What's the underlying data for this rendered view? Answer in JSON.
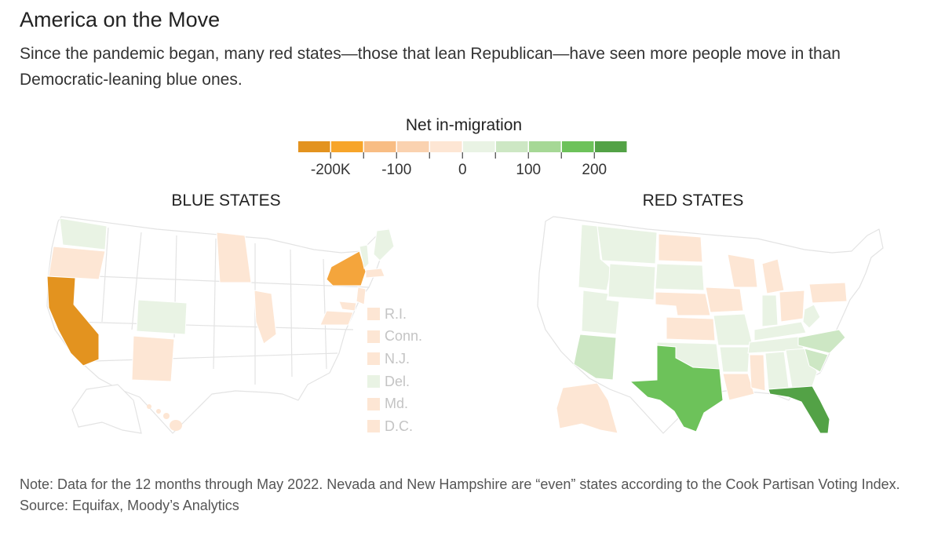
{
  "title": "America on the Move",
  "subtitle": "Since the pandemic began, many red states—those that lean Republican—have seen more people move in than Democratic-leaning blue ones.",
  "legend": {
    "title": "Net in-migration",
    "colors": [
      "#e3931f",
      "#f7a52a",
      "#f8bd84",
      "#fad2b0",
      "#fde6d4",
      "#e9f3e4",
      "#cde7c4",
      "#a6d896",
      "#6dc25a",
      "#53a246"
    ],
    "tick_labels": [
      "-200K",
      "-100",
      "0",
      "100",
      "200"
    ]
  },
  "blue_states": {
    "label": "BLUE STATES",
    "small_states": [
      {
        "name": "R.I.",
        "color": "#fde6d4"
      },
      {
        "name": "Conn.",
        "color": "#fde6d4"
      },
      {
        "name": "N.J.",
        "color": "#fde6d4"
      },
      {
        "name": "Del.",
        "color": "#e9f3e4"
      },
      {
        "name": "Md.",
        "color": "#fde6d4"
      },
      {
        "name": "D.C.",
        "color": "#fde6d4"
      }
    ]
  },
  "red_states": {
    "label": "RED STATES"
  },
  "colors": {
    "california": "#e3931f",
    "new_york": "#f4a53c",
    "light_orange": "#fde6d4",
    "light_green": "#e9f3e4",
    "mid_green": "#cde7c4",
    "texas": "#6dc25a",
    "florida": "#53a246"
  },
  "notes": {
    "note": "Note: Data for the 12 months through May 2022. Nevada and New Hampshire are “even” states according to the Cook Partisan Voting Index.",
    "source": "Source: Equifax, Moody’s Analytics"
  }
}
